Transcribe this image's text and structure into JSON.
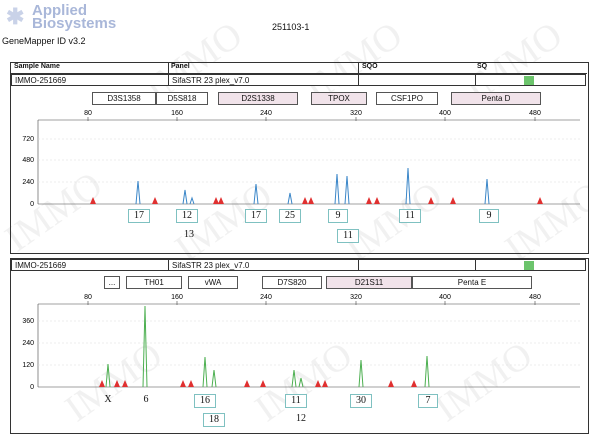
{
  "header": {
    "logo_line1": "Applied",
    "logo_line2": "Biosystems",
    "software": "GeneMapper ID v3.2",
    "run_id": "251103-1"
  },
  "table_header": {
    "sample_name": "Sample Name",
    "panel": "Panel",
    "sqo": "SQO",
    "sq": "SQ"
  },
  "watermark": "IMMO",
  "panels": [
    {
      "sample": "IMMO-251669",
      "panel": "SifaSTR 23 plex_v7.0",
      "ellipsis": "",
      "markers": [
        "D3S1358",
        "D5S818",
        "D2S1338",
        "TPOX",
        "CSF1PO",
        "Penta D"
      ],
      "x_ticks": [
        "80",
        "160",
        "240",
        "320",
        "400",
        "480"
      ],
      "y_ticks": [
        "720",
        "480",
        "240",
        "0"
      ],
      "alleles_row1": [
        "17",
        "12",
        "17",
        "25",
        "9",
        "11",
        "9"
      ],
      "alleles_row2": [
        "13",
        "11"
      ]
    },
    {
      "sample": "IMMO-251669",
      "panel": "SifaSTR 23 plex_v7.0",
      "ellipsis": "...",
      "markers": [
        "TH01",
        "vWA",
        "D7S820",
        "D21S11",
        "Penta E"
      ],
      "x_ticks": [
        "80",
        "160",
        "240",
        "320",
        "400",
        "480"
      ],
      "y_ticks": [
        "360",
        "240",
        "120",
        "0"
      ],
      "alleles_row1": [
        "X",
        "6",
        "16",
        "11",
        "30",
        "7"
      ],
      "alleles_row2": [
        "18",
        "12"
      ]
    }
  ],
  "colors": {
    "blue_dye": "#3a86c8",
    "green_dye": "#4caf50",
    "size_std": "#e03030",
    "status_ok": "#6cc46c"
  }
}
